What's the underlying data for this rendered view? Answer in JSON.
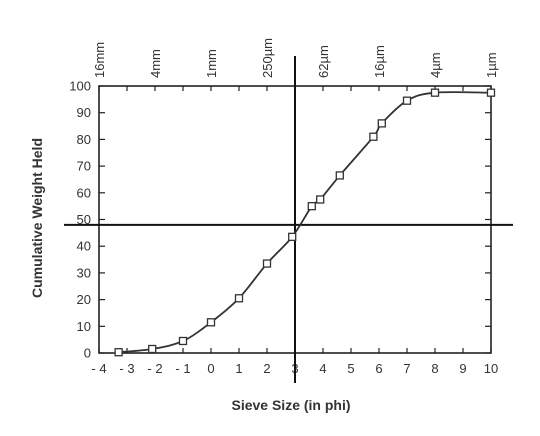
{
  "chart_data": {
    "type": "line",
    "xlabel": "Sieve Size (in phi)",
    "ylabel": "Cumulative Weight Held",
    "xlim": [
      -4,
      10
    ],
    "ylim": [
      0,
      100
    ],
    "x_ticks": [
      -4,
      -3,
      -2,
      -1,
      0,
      1,
      2,
      3,
      4,
      5,
      6,
      7,
      8,
      9,
      10
    ],
    "x_tick_labels": [
      "- 4",
      "- 3",
      "- 2",
      "- 1",
      "0",
      "1",
      "2",
      "3",
      "4",
      "5",
      "6",
      "7",
      "8",
      "9",
      "10"
    ],
    "y_ticks": [
      0,
      10,
      20,
      30,
      40,
      50,
      60,
      70,
      80,
      90,
      100
    ],
    "top_axis_labels": [
      {
        "phi": -4,
        "label": "16mm"
      },
      {
        "phi": -2,
        "label": "4mm"
      },
      {
        "phi": 0,
        "label": "1mm"
      },
      {
        "phi": 2,
        "label": "250µm"
      },
      {
        "phi": 4,
        "label": "62µm"
      },
      {
        "phi": 6,
        "label": "16µm"
      },
      {
        "phi": 8,
        "label": "4µm"
      },
      {
        "phi": 10,
        "label": "1µm"
      }
    ],
    "points": [
      {
        "x": -3.3,
        "y": 0.3
      },
      {
        "x": -2.1,
        "y": 1.5
      },
      {
        "x": -1.0,
        "y": 4.5
      },
      {
        "x": 0.0,
        "y": 11.5
      },
      {
        "x": 1.0,
        "y": 20.5
      },
      {
        "x": 2.0,
        "y": 33.5
      },
      {
        "x": 2.9,
        "y": 43.5
      },
      {
        "x": 3.6,
        "y": 55
      },
      {
        "x": 3.9,
        "y": 57.5
      },
      {
        "x": 4.6,
        "y": 66.5
      },
      {
        "x": 5.8,
        "y": 81
      },
      {
        "x": 6.1,
        "y": 86
      },
      {
        "x": 7.0,
        "y": 94.5
      },
      {
        "x": 8.0,
        "y": 97.5
      },
      {
        "x": 10.0,
        "y": 97.5
      }
    ],
    "reference_lines": {
      "vertical_x": 3,
      "horizontal_y": 48
    },
    "grid": false,
    "colors": {
      "line": "#333333",
      "marker": "#333333",
      "axis": "#222222"
    }
  }
}
